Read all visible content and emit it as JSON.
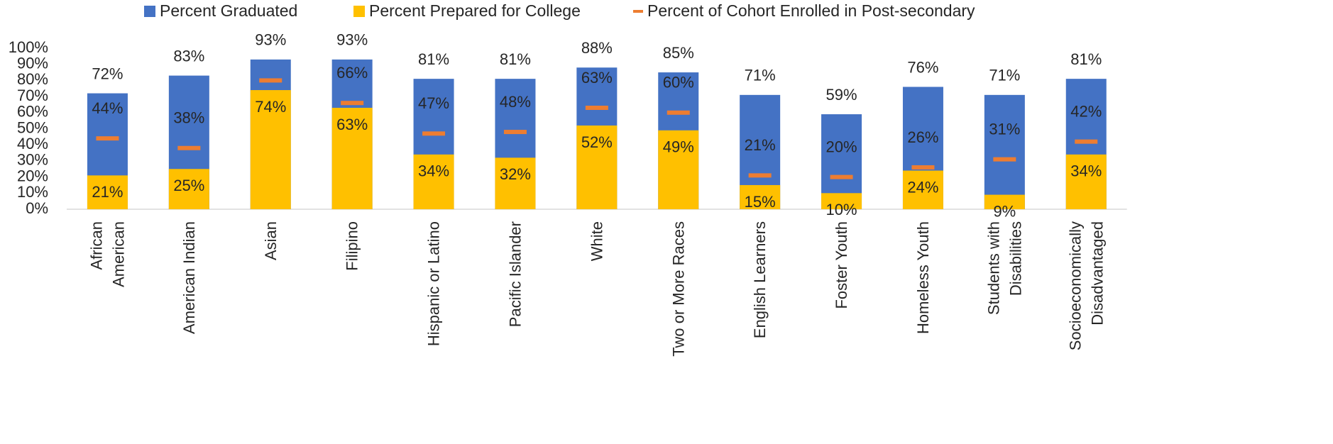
{
  "chart_data": {
    "type": "bar",
    "categories": [
      "African\nAmerican",
      "American Indian",
      "Asian",
      "Filipino",
      "Hispanic or Latino",
      "Pacific Islander",
      "White",
      "Two or More Races",
      "English Learners",
      "Foster Youth",
      "Homeless Youth",
      "Students with\nDisabilities",
      "Socioeconomically\nDisadvantaged"
    ],
    "series": [
      {
        "name": "Percent Graduated",
        "color": "#4472c4",
        "values": [
          72,
          83,
          93,
          93,
          81,
          81,
          88,
          85,
          71,
          59,
          76,
          71,
          81
        ],
        "value_labels": [
          "72%",
          "83%",
          "93%",
          "93%",
          "81%",
          "81%",
          "88%",
          "85%",
          "71%",
          "59%",
          "76%",
          "71%",
          "81%"
        ]
      },
      {
        "name": "Percent Prepared for College",
        "color": "#ffc000",
        "values": [
          21,
          25,
          74,
          63,
          34,
          32,
          52,
          49,
          15,
          10,
          24,
          9,
          34
        ],
        "value_labels": [
          "21%",
          "25%",
          "74%",
          "63%",
          "34%",
          "32%",
          "52%",
          "49%",
          "15%",
          "10%",
          "24%",
          "9%",
          "34%"
        ]
      },
      {
        "name": "Percent of Cohort Enrolled in Post-secondary",
        "color": "#ed7d31",
        "values": [
          44,
          38,
          80,
          66,
          47,
          48,
          63,
          60,
          21,
          20,
          26,
          31,
          42
        ],
        "value_labels": [
          "44%",
          "38%",
          null,
          "66%",
          "47%",
          "48%",
          "63%",
          "60%",
          "21%",
          "20%",
          "26%",
          "31%",
          "42%"
        ]
      }
    ],
    "ylim": [
      0,
      100
    ],
    "yticks": [
      {
        "value": 0,
        "label": "0%"
      },
      {
        "value": 10,
        "label": "10%"
      },
      {
        "value": 20,
        "label": "20%"
      },
      {
        "value": 30,
        "label": "30%"
      },
      {
        "value": 40,
        "label": "40%"
      },
      {
        "value": 50,
        "label": "50%"
      },
      {
        "value": 60,
        "label": "60%"
      },
      {
        "value": 70,
        "label": "70%"
      },
      {
        "value": 80,
        "label": "80%"
      },
      {
        "value": 90,
        "label": "90%"
      },
      {
        "value": 100,
        "label": "100%"
      }
    ],
    "grid": false,
    "legend": "top"
  }
}
